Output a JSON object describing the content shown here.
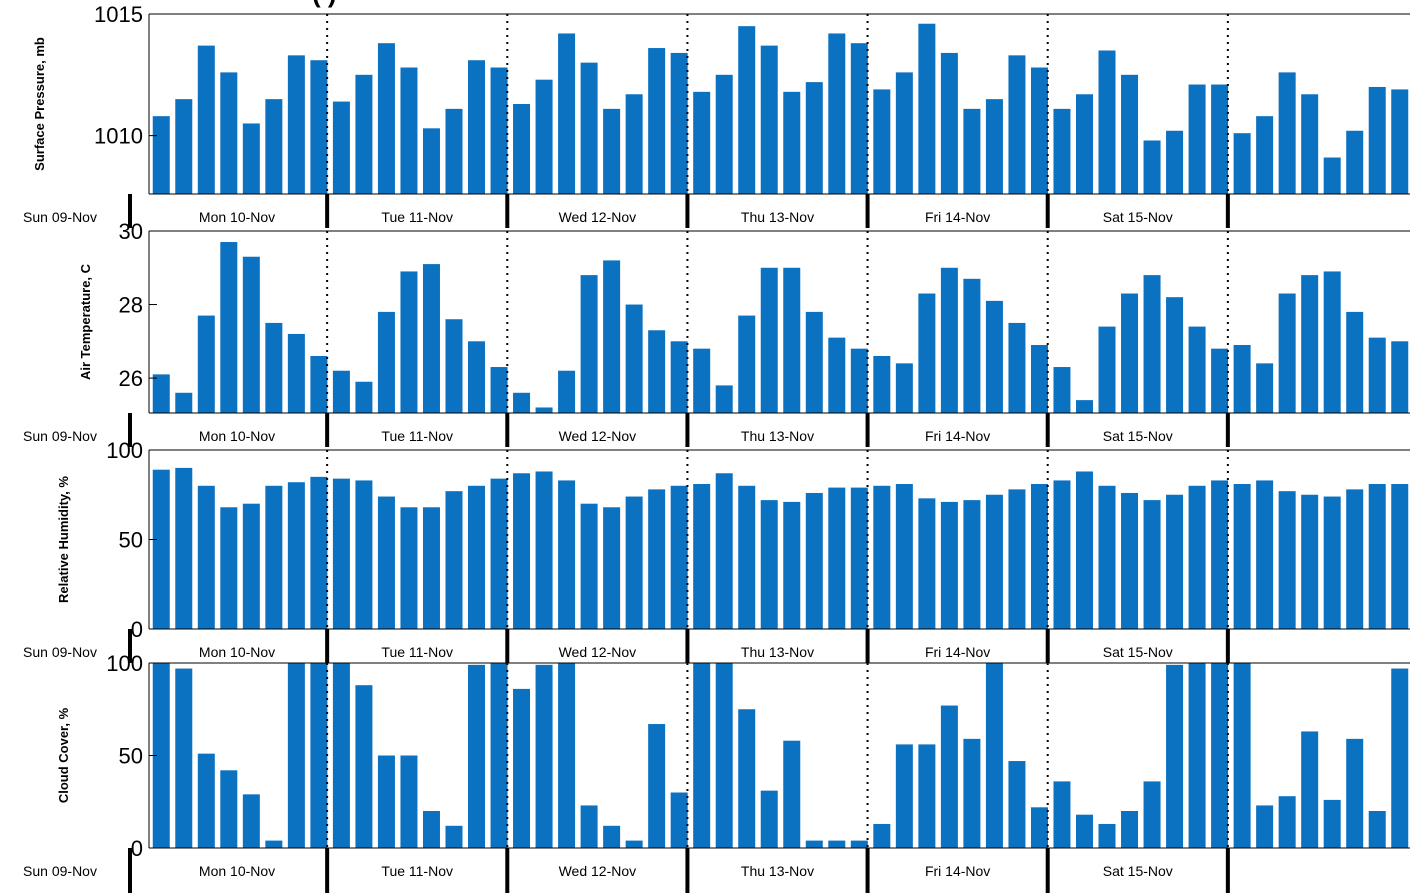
{
  "title_fragment": "(         )",
  "colors": {
    "bar": "#0b71c1",
    "axis": "#000000"
  },
  "days": [
    "Sun 09-Nov",
    "Mon 10-Nov",
    "Tue 11-Nov",
    "Wed 12-Nov",
    "Thu 13-Nov",
    "Fri 14-Nov",
    "Sat 15-Nov"
  ],
  "chart_data": [
    {
      "type": "bar",
      "ylabel": "Surface Pressure, mb",
      "ylim": [
        1007.6,
        1015
      ],
      "yticks": [
        1010,
        1015
      ],
      "grid": false,
      "values": [
        1010.8,
        1011.5,
        1013.7,
        1012.6,
        1010.5,
        1011.5,
        1013.3,
        1013.1,
        1011.4,
        1012.5,
        1013.8,
        1012.8,
        1010.3,
        1011.1,
        1013.1,
        1012.8,
        1011.3,
        1012.3,
        1014.2,
        1013.0,
        1011.1,
        1011.7,
        1013.6,
        1013.4,
        1011.8,
        1012.5,
        1014.5,
        1013.7,
        1011.8,
        1012.2,
        1014.2,
        1013.8,
        1011.9,
        1012.6,
        1014.6,
        1013.4,
        1011.1,
        1011.5,
        1013.3,
        1012.8,
        1011.1,
        1011.7,
        1013.5,
        1012.5,
        1009.8,
        1010.2,
        1012.1,
        1012.1,
        1010.1,
        1010.8,
        1012.6,
        1011.7,
        1009.1,
        1010.2,
        1012.0,
        1011.9
      ]
    },
    {
      "type": "bar",
      "ylabel": "Air Temperature, C",
      "ylim": [
        25.05,
        30
      ],
      "yticks": [
        26,
        28,
        30
      ],
      "grid": false,
      "values": [
        26.1,
        25.6,
        27.7,
        29.7,
        29.3,
        27.5,
        27.2,
        26.6,
        26.2,
        25.9,
        27.8,
        28.9,
        29.1,
        27.6,
        27.0,
        26.3,
        25.6,
        25.2,
        26.2,
        28.8,
        29.2,
        28.0,
        27.3,
        27.0,
        26.8,
        25.8,
        27.7,
        29.0,
        29.0,
        27.8,
        27.1,
        26.8,
        26.6,
        26.4,
        28.3,
        29.0,
        28.7,
        28.1,
        27.5,
        26.9,
        26.3,
        25.4,
        27.4,
        28.3,
        28.8,
        28.2,
        27.4,
        26.8,
        26.9,
        26.4,
        28.3,
        28.8,
        28.9,
        27.8,
        27.1,
        27.0
      ]
    },
    {
      "type": "bar",
      "ylabel": "Relative Humidity, %",
      "ylim": [
        0,
        100
      ],
      "yticks": [
        0,
        50,
        100
      ],
      "grid": false,
      "values": [
        89,
        90,
        80,
        68,
        70,
        80,
        82,
        85,
        84,
        83,
        74,
        68,
        68,
        77,
        80,
        84,
        87,
        88,
        83,
        70,
        68,
        74,
        78,
        80,
        81,
        87,
        80,
        72,
        71,
        76,
        79,
        79,
        80,
        81,
        73,
        71,
        72,
        75,
        78,
        81,
        83,
        88,
        80,
        76,
        72,
        75,
        80,
        83,
        81,
        83,
        77,
        75,
        74,
        78,
        81,
        81
      ]
    },
    {
      "type": "bar",
      "ylabel": "Cloud Cover, %",
      "ylim": [
        0,
        100
      ],
      "yticks": [
        0,
        50,
        100
      ],
      "grid": false,
      "values": [
        100,
        97,
        51,
        42,
        29,
        4,
        100,
        100,
        100,
        88,
        50,
        50,
        20,
        12,
        99,
        100,
        86,
        99,
        100,
        23,
        12,
        4,
        67,
        30,
        100,
        100,
        75,
        31,
        58,
        4,
        4,
        4,
        13,
        56,
        56,
        77,
        59,
        100,
        47,
        22,
        36,
        18,
        13,
        20,
        36,
        99,
        100,
        100,
        100,
        23,
        28,
        63,
        26,
        59,
        20,
        97
      ]
    }
  ]
}
